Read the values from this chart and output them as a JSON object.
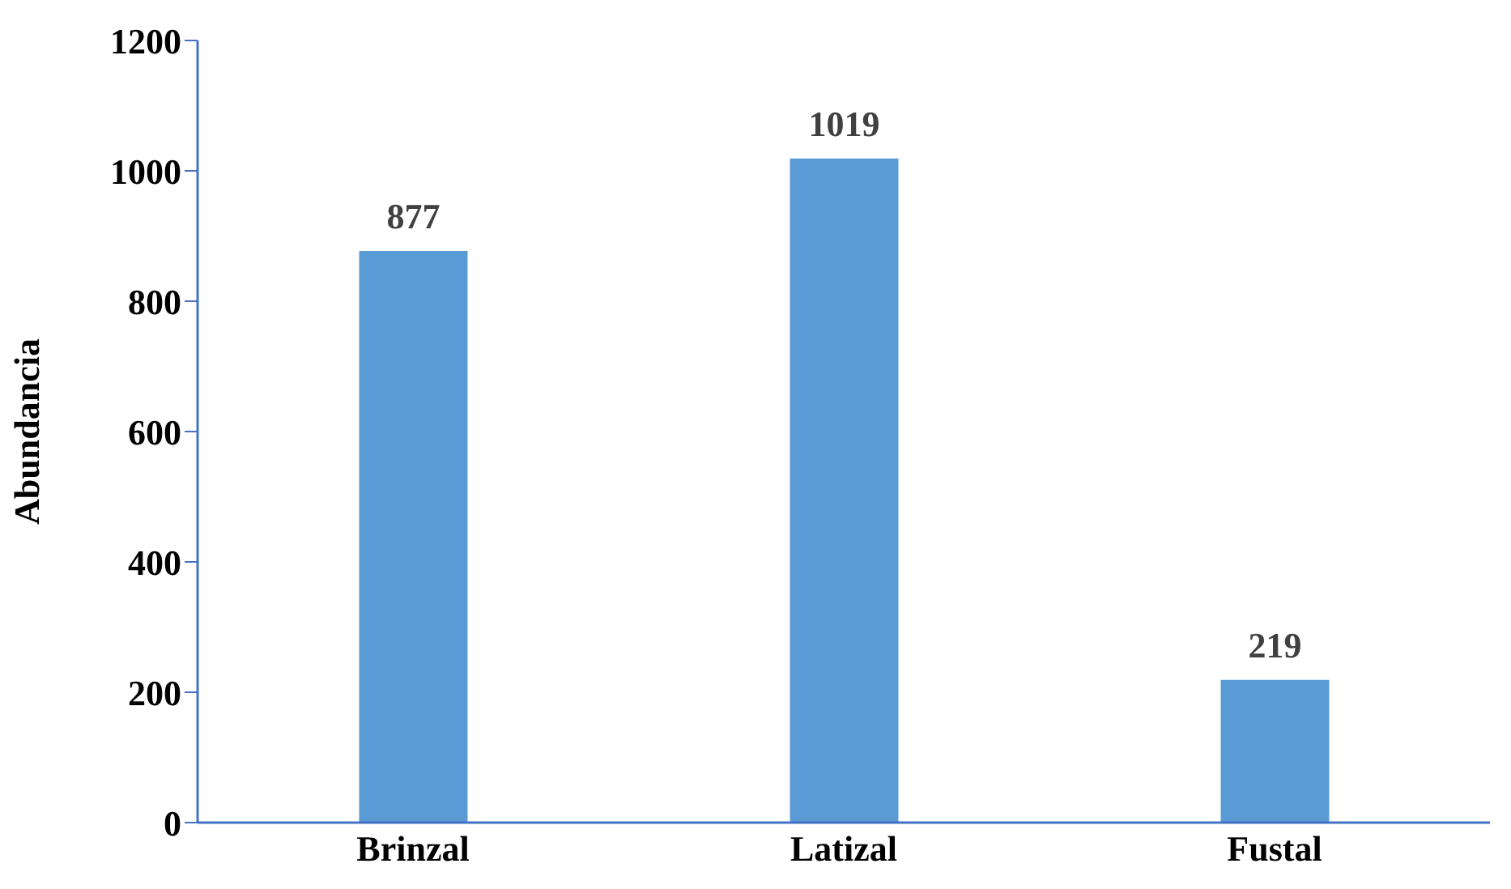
{
  "chart_data": {
    "type": "bar",
    "ylabel": "Abundancia",
    "categories": [
      "Brinzal",
      "Latizal",
      "Fustal"
    ],
    "values": [
      877,
      1019,
      219
    ],
    "color": "#5b9bd5",
    "ylim": [
      0,
      1200
    ],
    "yticks": [
      0,
      200,
      400,
      600,
      800,
      1000,
      1200
    ],
    "grid": false,
    "data_labels": true
  }
}
